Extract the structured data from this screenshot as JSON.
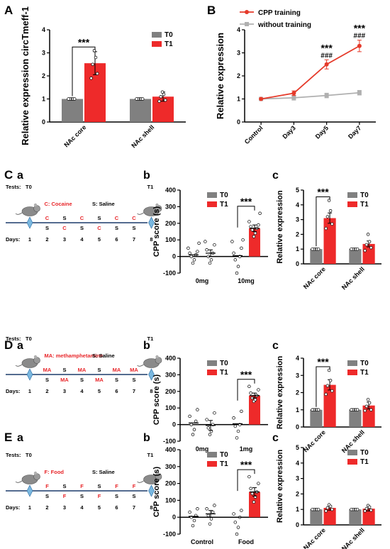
{
  "colors": {
    "t0": "#808080",
    "t1": "#ee2a2a",
    "cpp": "#e53a2a",
    "without": "#b0b0b0",
    "timeline_red": "#e8262a",
    "axis": "#000000"
  },
  "panels": {
    "A": {
      "letter": "A"
    },
    "B": {
      "letter": "B"
    },
    "C": {
      "letter": "C",
      "sub_a": "a",
      "sub_b": "b",
      "sub_c": "c",
      "timeline": {
        "tests_label": "Tests:",
        "t0": "T0",
        "t1": "T1",
        "legend_drug": "C: Cocaine",
        "legend_saline": "S: Saline",
        "top_row": [
          "C",
          "S",
          "C",
          "S",
          "C",
          "C"
        ],
        "bottom_row": [
          "S",
          "C",
          "S",
          "C",
          "S",
          "S"
        ],
        "days_label": "Days:",
        "days": [
          "1",
          "2",
          "3",
          "4",
          "5",
          "6",
          "7",
          "8"
        ]
      }
    },
    "D": {
      "letter": "D",
      "sub_a": "a",
      "sub_b": "b",
      "sub_c": "c",
      "timeline": {
        "tests_label": "Tests:",
        "t0": "T0",
        "t1": "T1",
        "legend_drug": "MA: methamphetamine",
        "legend_saline": "S: Saline",
        "top_row": [
          "MA",
          "S",
          "MA",
          "S",
          "MA",
          "MA"
        ],
        "bottom_row": [
          "S",
          "MA",
          "S",
          "MA",
          "S",
          "S"
        ],
        "days_label": "Days:",
        "days": [
          "1",
          "2",
          "3",
          "4",
          "5",
          "6",
          "7",
          "8"
        ]
      }
    },
    "E": {
      "letter": "E",
      "sub_a": "a",
      "sub_b": "b",
      "sub_c": "c",
      "timeline": {
        "tests_label": "Tests:",
        "t0": "T0",
        "t1": "T1",
        "legend_drug": "F: Food",
        "legend_saline": "S: Saline",
        "top_row": [
          "F",
          "S",
          "F",
          "S",
          "F",
          "F"
        ],
        "bottom_row": [
          "S",
          "F",
          "S",
          "F",
          "S",
          "S"
        ],
        "days_label": "Days:",
        "days": [
          "1",
          "2",
          "3",
          "4",
          "5",
          "6",
          "7",
          "8"
        ]
      }
    }
  },
  "chart_data": [
    {
      "id": "A",
      "type": "bar",
      "ylabel": "Relative expression circTmeff-1",
      "ylim": [
        0,
        4
      ],
      "yticks": [
        0,
        1,
        2,
        3,
        4
      ],
      "categories": [
        "NAc core",
        "NAc shell"
      ],
      "series": [
        {
          "name": "T0",
          "values": [
            1.0,
            1.0
          ],
          "errors": [
            0.0,
            0.0
          ],
          "points": [
            [
              1,
              1,
              1,
              1,
              1
            ],
            [
              1,
              1,
              1,
              1,
              1
            ]
          ]
        },
        {
          "name": "T1",
          "values": [
            2.55,
            1.1
          ],
          "errors": [
            0.5,
            0.2
          ],
          "points": [
            [
              3.1,
              2.8,
              2.5,
              2.1,
              1.9
            ],
            [
              1.3,
              1.2,
              1.1,
              0.95,
              0.9
            ]
          ]
        }
      ],
      "significance": [
        {
          "category": "NAc core",
          "label": "***"
        }
      ],
      "legend": "top-right"
    },
    {
      "id": "B",
      "type": "line",
      "ylabel": "Relative expression",
      "ylim": [
        0,
        4
      ],
      "yticks": [
        0,
        1,
        2,
        3,
        4
      ],
      "categories": [
        "Control",
        "Day3",
        "Day5",
        "Day7"
      ],
      "series": [
        {
          "name": "CPP training",
          "values": [
            1.0,
            1.25,
            2.5,
            3.3
          ],
          "errors": [
            0.0,
            0.1,
            0.2,
            0.25
          ]
        },
        {
          "name": "without training",
          "values": [
            1.0,
            1.05,
            1.15,
            1.27
          ],
          "errors": [
            0.0,
            0.1,
            0.1,
            0.1
          ]
        }
      ],
      "annotations": [
        {
          "category": "Day5",
          "stars": "***",
          "hashes": "###"
        },
        {
          "category": "Day7",
          "stars": "***",
          "hashes": "###"
        }
      ],
      "legend": "top-left"
    },
    {
      "id": "Cb",
      "type": "scatter",
      "ylabel": "CPP score (s)",
      "ylim": [
        -100,
        400
      ],
      "yticks": [
        -100,
        0,
        100,
        200,
        300,
        400
      ],
      "categories": [
        "0mg",
        "10mg"
      ],
      "series": [
        {
          "name": "T0",
          "means": [
            10,
            5
          ],
          "points": [
            [
              -40,
              -20,
              0,
              10,
              20,
              30,
              50,
              80
            ],
            [
              -100,
              -60,
              -20,
              0,
              20,
              50,
              90,
              100
            ]
          ]
        },
        {
          "name": "T1",
          "means": [
            20,
            170
          ],
          "errors": [
            20,
            20
          ],
          "points": [
            [
              -40,
              -20,
              0,
              20,
              40,
              70,
              90
            ],
            [
              120,
              140,
              160,
              170,
              180,
              190,
              210,
              260
            ]
          ]
        }
      ],
      "significance": [
        {
          "category": "10mg",
          "label": "***"
        }
      ],
      "legend": "top-right"
    },
    {
      "id": "Cc",
      "type": "bar",
      "ylabel": "Relative expression",
      "ylim": [
        0,
        5
      ],
      "yticks": [
        0,
        1,
        2,
        3,
        4,
        5
      ],
      "categories": [
        "NAc core",
        "NAc shell"
      ],
      "series": [
        {
          "name": "T0",
          "values": [
            1.0,
            1.0
          ],
          "errors": [
            0.0,
            0.0
          ],
          "points": [
            [
              1,
              1,
              1,
              1,
              1
            ],
            [
              1,
              1,
              1,
              1,
              1
            ]
          ]
        },
        {
          "name": "T1",
          "values": [
            3.1,
            1.35
          ],
          "errors": [
            0.35,
            0.2
          ],
          "points": [
            [
              4.3,
              3.6,
              3.2,
              2.7,
              2.4
            ],
            [
              2.0,
              1.5,
              1.3,
              1.1,
              0.9
            ]
          ]
        }
      ],
      "significance": [
        {
          "category": "NAc core",
          "label": "***"
        }
      ],
      "legend": "top-right"
    },
    {
      "id": "Db",
      "type": "scatter",
      "ylabel": "CPP score (s)",
      "ylim": [
        -100,
        400
      ],
      "yticks": [
        -100,
        0,
        100,
        200,
        300,
        400
      ],
      "categories": [
        "0mg",
        "1mg"
      ],
      "series": [
        {
          "name": "T0",
          "means": [
            10,
            5
          ],
          "points": [
            [
              -60,
              -30,
              0,
              20,
              50,
              90
            ],
            [
              -80,
              -40,
              -10,
              0,
              40,
              80
            ]
          ]
        },
        {
          "name": "T1",
          "means": [
            -5,
            175
          ],
          "errors": [
            30,
            15
          ],
          "points": [
            [
              -60,
              -40,
              -20,
              0,
              30,
              70
            ],
            [
              140,
              150,
              160,
              175,
              190,
              210,
              230
            ]
          ]
        }
      ],
      "significance": [
        {
          "category": "1mg",
          "label": "***"
        }
      ],
      "legend": "top-right"
    },
    {
      "id": "Dc",
      "type": "bar",
      "ylabel": "Relative expression",
      "ylim": [
        0,
        4
      ],
      "yticks": [
        0,
        1,
        2,
        3,
        4
      ],
      "categories": [
        "NAc core",
        "NAc shell"
      ],
      "series": [
        {
          "name": "T0",
          "values": [
            1.0,
            1.0
          ],
          "errors": [
            0.0,
            0.0
          ],
          "points": [
            [
              1,
              1,
              1,
              1,
              1
            ],
            [
              1,
              1,
              1,
              1,
              1
            ]
          ]
        },
        {
          "name": "T1",
          "values": [
            2.45,
            1.25
          ],
          "errors": [
            0.3,
            0.2
          ],
          "points": [
            [
              3.3,
              2.7,
              2.4,
              2.1,
              1.9
            ],
            [
              1.6,
              1.4,
              1.2,
              1.0,
              0.95
            ]
          ]
        }
      ],
      "significance": [
        {
          "category": "NAc core",
          "label": "***"
        }
      ],
      "legend": "top-right"
    },
    {
      "id": "Eb",
      "type": "scatter",
      "ylabel": "CPP score (s)",
      "ylim": [
        -100,
        400
      ],
      "yticks": [
        -100,
        0,
        100,
        200,
        300,
        400
      ],
      "categories": [
        "Control",
        "Food"
      ],
      "series": [
        {
          "name": "T0",
          "means": [
            5,
            0
          ],
          "points": [
            [
              -50,
              -20,
              0,
              10,
              30,
              50
            ],
            [
              -100,
              -60,
              -30,
              0,
              20,
              40
            ]
          ]
        },
        {
          "name": "T1",
          "means": [
            20,
            150
          ],
          "errors": [
            20,
            25
          ],
          "points": [
            [
              -40,
              -10,
              10,
              30,
              50,
              70
            ],
            [
              90,
              120,
              140,
              150,
              170,
              200,
              240
            ]
          ]
        }
      ],
      "significance": [
        {
          "category": "Food",
          "label": "***"
        }
      ],
      "legend": "top-right"
    },
    {
      "id": "Ec",
      "type": "bar",
      "ylabel": "Relative expression",
      "ylim": [
        0,
        5
      ],
      "yticks": [
        0,
        1,
        2,
        3,
        4,
        5
      ],
      "categories": [
        "NAc core",
        "NAc shell"
      ],
      "series": [
        {
          "name": "T0",
          "values": [
            1.0,
            1.0
          ],
          "errors": [
            0.0,
            0.0
          ],
          "points": [
            [
              1,
              1,
              1,
              1,
              1
            ],
            [
              1,
              1,
              1,
              1,
              1
            ]
          ]
        },
        {
          "name": "T1",
          "values": [
            1.1,
            1.05
          ],
          "errors": [
            0.15,
            0.15
          ],
          "points": [
            [
              1.3,
              1.2,
              1.1,
              1.0,
              0.9
            ],
            [
              1.25,
              1.15,
              1.05,
              0.95,
              0.9
            ]
          ]
        }
      ],
      "legend": "top-right"
    }
  ]
}
